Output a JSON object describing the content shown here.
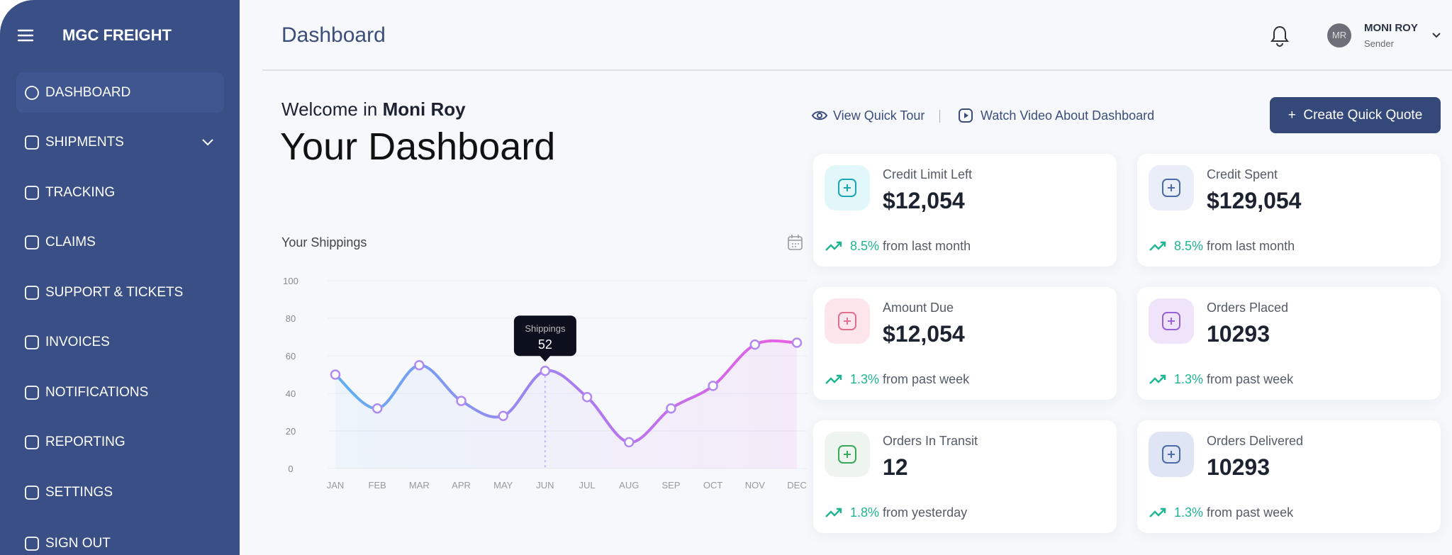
{
  "sidebar": {
    "brand": "MGC FREIGHT",
    "menu": [
      "DASHBOARD",
      "SHIPMENTS",
      "TRACKING",
      "CLAIMS",
      "SUPPORT & TICKETS",
      "INVOICES",
      "NOTIFICATIONS",
      "REPORTING",
      "SETTINGS",
      "SIGN OUT"
    ]
  },
  "header": {
    "title": "Dashboard",
    "user": {
      "initials": "MR",
      "name": "MONI ROY",
      "role": "Sender"
    }
  },
  "welcome": {
    "greeting": "Welcome in",
    "name": "Moni Roy",
    "title": "Your Dashboard"
  },
  "actions": {
    "tour": "View Quick Tour",
    "video": "Watch Video About Dashboard",
    "create": "Create Quick Quote"
  },
  "chart_data": {
    "type": "line",
    "title": "Your Shippings",
    "categories": [
      "JAN",
      "FEB",
      "MAR",
      "APR",
      "MAY",
      "JUN",
      "JUL",
      "AUG",
      "SEP",
      "OCT",
      "NOV",
      "DEC"
    ],
    "values": [
      50,
      32,
      55,
      36,
      28,
      52,
      38,
      14,
      32,
      44,
      66,
      67
    ],
    "ylim": [
      0,
      100
    ],
    "yticks": [
      0,
      20,
      40,
      60,
      80,
      100
    ],
    "grid": true,
    "tooltip": {
      "label": "Shippings",
      "index": 5
    }
  },
  "cards": [
    {
      "label": "Credit Limit Left",
      "value": "$12,054",
      "change": "8.5%",
      "period": "from last month"
    },
    {
      "label": "Credit Spent",
      "value": "$129,054",
      "change": "8.5%",
      "period": "from last month"
    },
    {
      "label": "Amount Due",
      "value": "$12,054",
      "change": "1.3%",
      "period": "from past week"
    },
    {
      "label": "Orders Placed",
      "value": "10293",
      "change": "1.3%",
      "period": "from past week"
    },
    {
      "label": "Orders In Transit",
      "value": "12",
      "change": "1.8%",
      "period": "from yesterday"
    },
    {
      "label": "Orders Delivered",
      "value": "10293",
      "change": "1.3%",
      "period": "from past week"
    }
  ]
}
